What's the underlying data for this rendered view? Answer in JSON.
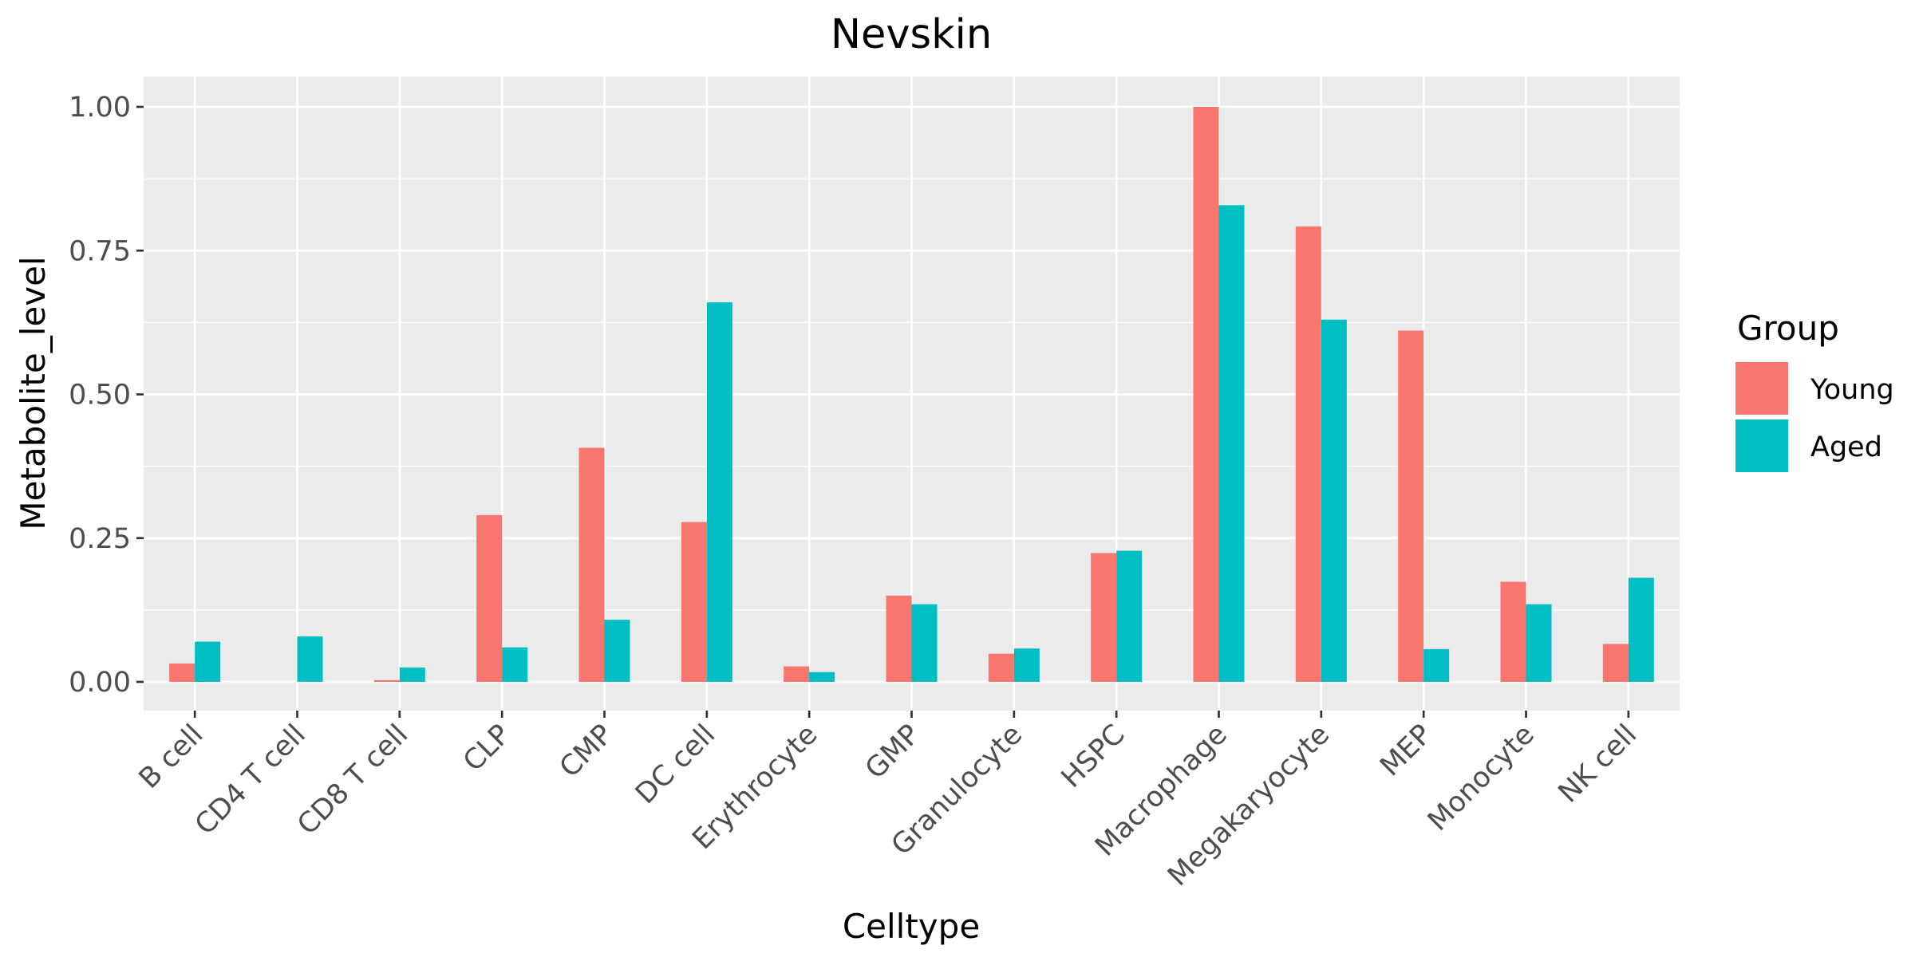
{
  "chart_data": {
    "type": "bar",
    "title": "Nevskin",
    "xlabel": "Celltype",
    "ylabel": "Metabolite_level",
    "categories": [
      "B cell",
      "CD4 T cell",
      "CD8 T cell",
      "CLP",
      "CMP",
      "DC cell",
      "Erythrocyte",
      "GMP",
      "Granulocyte",
      "HSPC",
      "Macrophage",
      "Megakaryocyte",
      "MEP",
      "Monocyte",
      "NK cell"
    ],
    "series": [
      {
        "name": "Young",
        "color": "#F8766D",
        "values": [
          0.032,
          0.0,
          0.003,
          0.29,
          0.407,
          0.278,
          0.027,
          0.15,
          0.049,
          0.224,
          1.0,
          0.792,
          0.611,
          0.174,
          0.066
        ]
      },
      {
        "name": "Aged",
        "color": "#00BFC4",
        "values": [
          0.07,
          0.079,
          0.025,
          0.06,
          0.108,
          0.66,
          0.017,
          0.135,
          0.058,
          0.228,
          0.829,
          0.63,
          0.057,
          0.135,
          0.181
        ]
      }
    ],
    "ylim": [
      -0.05,
      1.05
    ],
    "yticks": [
      0.0,
      0.25,
      0.5,
      0.75,
      1.0
    ],
    "ytick_labels": [
      "0.00",
      "0.25",
      "0.50",
      "0.75",
      "1.00"
    ],
    "grid": true,
    "panel_background": "#EBEBEB",
    "legend": {
      "title": "Group",
      "position": "right"
    }
  }
}
